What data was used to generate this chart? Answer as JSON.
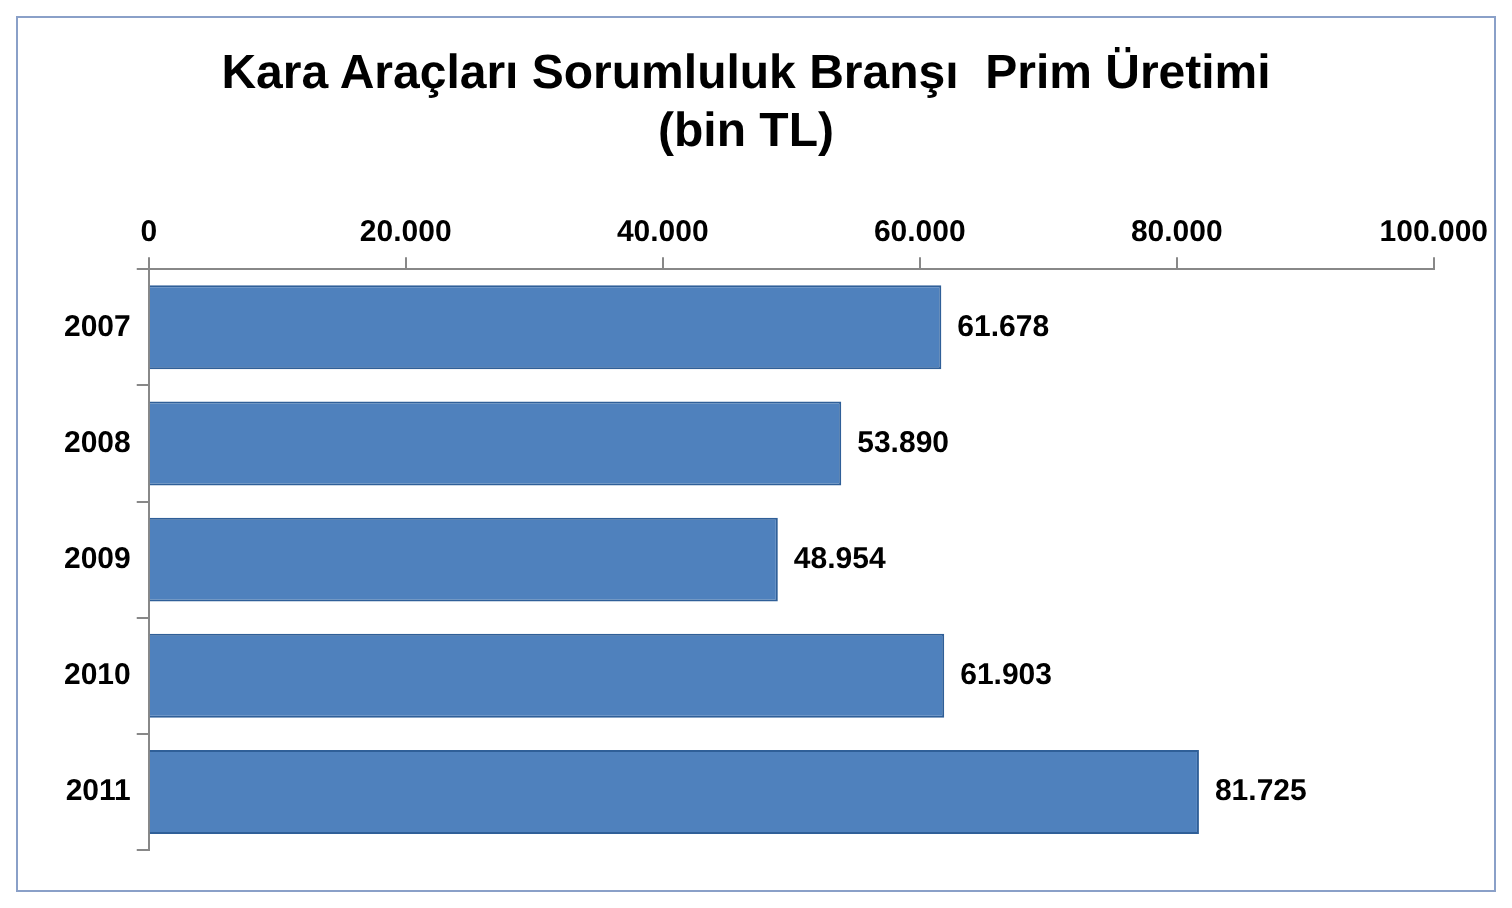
{
  "chart_data": {
    "type": "bar",
    "orientation": "horizontal",
    "title": "Kara Araçları Sorumluluk Branşı  Prim Üretimi",
    "subtitle": "(bin TL)",
    "categories": [
      "2007",
      "2008",
      "2009",
      "2010",
      "2011"
    ],
    "values": [
      61678,
      53890,
      48954,
      61903,
      81725
    ],
    "value_labels": [
      "61.678",
      "53.890",
      "48.954",
      "61.903",
      "81.725"
    ],
    "color": "#4f81bd",
    "xlim": [
      0,
      100000
    ],
    "xticks": [
      0,
      {
        "value": 20000,
        "label": "20.000"
      },
      {
        "value": 40000,
        "label": "40.000"
      },
      {
        "value": 60000,
        "label": "60.000"
      },
      {
        "value": 80000,
        "label": "80.000"
      },
      {
        "value": 100000,
        "label": "100.000"
      }
    ],
    "grid": false,
    "legend": false
  }
}
